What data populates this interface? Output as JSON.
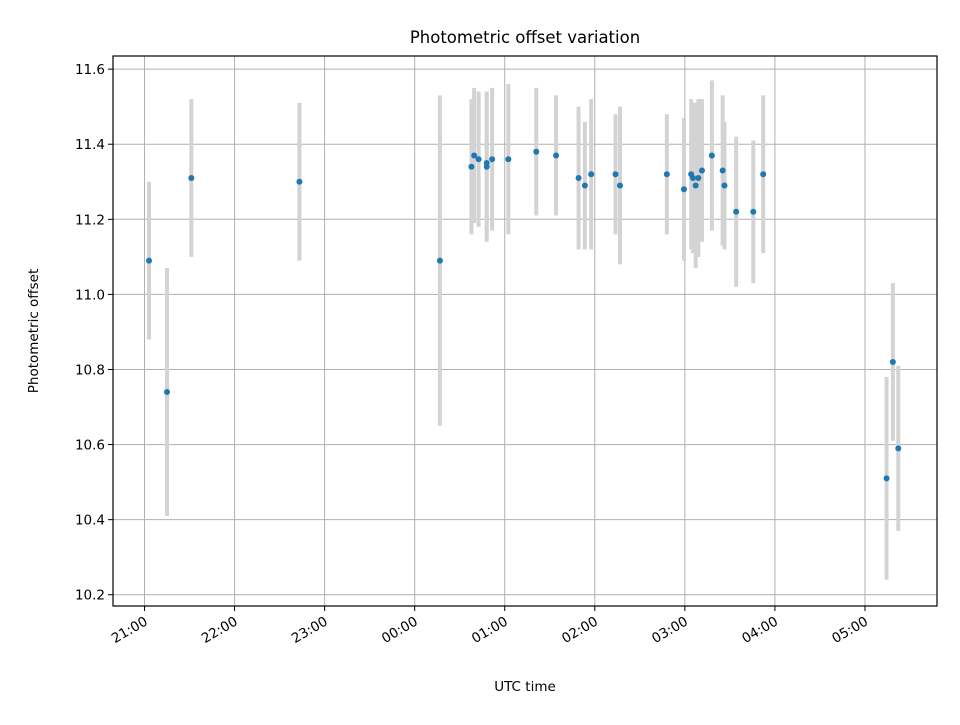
{
  "chart_data": {
    "type": "scatter",
    "title": "Photometric offset variation",
    "xlabel": "UTC time",
    "ylabel": "Photometric offset",
    "x_tick_labels": [
      "21:00",
      "22:00",
      "23:00",
      "00:00",
      "01:00",
      "02:00",
      "03:00",
      "04:00",
      "05:00"
    ],
    "y_tick_labels": [
      "10.2",
      "10.4",
      "10.6",
      "10.8",
      "11.0",
      "11.2",
      "11.4",
      "11.6"
    ],
    "x_range_hours": [
      -0.35,
      8.8
    ],
    "ylim": [
      10.17,
      11.635
    ],
    "grid": true,
    "x_unit": "hours since 21:00 UTC",
    "point_color": "#1f77b4",
    "errorbar_color": "#d3d3d3",
    "points": [
      {
        "x": 0.05,
        "y": 11.09,
        "err": 0.21
      },
      {
        "x": 0.25,
        "y": 10.74,
        "err": 0.33
      },
      {
        "x": 0.52,
        "y": 11.31,
        "err": 0.21
      },
      {
        "x": 1.72,
        "y": 11.3,
        "err": 0.21
      },
      {
        "x": 3.28,
        "y": 11.09,
        "err": 0.44
      },
      {
        "x": 3.63,
        "y": 11.34,
        "err": 0.18
      },
      {
        "x": 3.66,
        "y": 11.37,
        "err": 0.18
      },
      {
        "x": 3.71,
        "y": 11.36,
        "err": 0.18
      },
      {
        "x": 3.8,
        "y": 11.34,
        "err": 0.2
      },
      {
        "x": 3.8,
        "y": 11.35,
        "err": 0.19
      },
      {
        "x": 3.86,
        "y": 11.36,
        "err": 0.19
      },
      {
        "x": 4.04,
        "y": 11.36,
        "err": 0.2
      },
      {
        "x": 4.35,
        "y": 11.38,
        "err": 0.17
      },
      {
        "x": 4.57,
        "y": 11.37,
        "err": 0.16
      },
      {
        "x": 4.82,
        "y": 11.31,
        "err": 0.19
      },
      {
        "x": 4.89,
        "y": 11.29,
        "err": 0.17
      },
      {
        "x": 4.96,
        "y": 11.32,
        "err": 0.2
      },
      {
        "x": 5.23,
        "y": 11.32,
        "err": 0.16
      },
      {
        "x": 5.28,
        "y": 11.29,
        "err": 0.21
      },
      {
        "x": 5.8,
        "y": 11.32,
        "err": 0.16
      },
      {
        "x": 5.99,
        "y": 11.28,
        "err": 0.19
      },
      {
        "x": 6.07,
        "y": 11.32,
        "err": 0.2
      },
      {
        "x": 6.09,
        "y": 11.31,
        "err": 0.2
      },
      {
        "x": 6.12,
        "y": 11.29,
        "err": 0.22
      },
      {
        "x": 6.15,
        "y": 11.31,
        "err": 0.21
      },
      {
        "x": 6.19,
        "y": 11.33,
        "err": 0.19
      },
      {
        "x": 6.3,
        "y": 11.37,
        "err": 0.2
      },
      {
        "x": 6.42,
        "y": 11.33,
        "err": 0.2
      },
      {
        "x": 6.44,
        "y": 11.29,
        "err": 0.17
      },
      {
        "x": 6.57,
        "y": 11.22,
        "err": 0.2
      },
      {
        "x": 6.76,
        "y": 11.22,
        "err": 0.19
      },
      {
        "x": 6.87,
        "y": 11.32,
        "err": 0.21
      },
      {
        "x": 8.24,
        "y": 10.51,
        "err": 0.27
      },
      {
        "x": 8.31,
        "y": 10.82,
        "err": 0.21
      },
      {
        "x": 8.37,
        "y": 10.59,
        "err": 0.22
      }
    ]
  }
}
